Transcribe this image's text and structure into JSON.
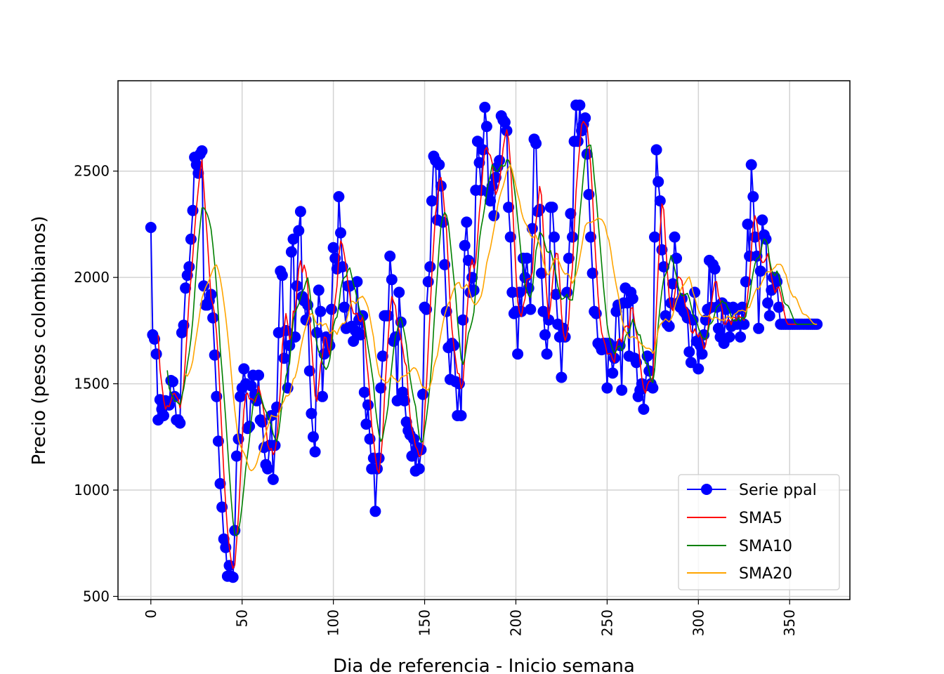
{
  "chart_data": {
    "type": "line",
    "title": "",
    "xlabel": "Dia de referencia - Inicio semana",
    "ylabel": "Precio (pesos colombianos)",
    "xlim": [
      -18,
      383
    ],
    "ylim": [
      485,
      2925
    ],
    "xticks": [
      0,
      50,
      100,
      150,
      200,
      250,
      300,
      350
    ],
    "yticks": [
      500,
      1000,
      1500,
      2000,
      2500
    ],
    "grid": true,
    "legend_position": "lower right",
    "x": [
      0,
      1,
      2,
      3,
      4,
      5,
      6,
      7,
      8,
      9,
      10,
      11,
      12,
      13,
      14,
      15,
      16,
      17,
      18,
      19,
      20,
      21,
      22,
      23,
      24,
      25,
      26,
      27,
      28,
      29,
      30,
      31,
      32,
      33,
      34,
      35,
      36,
      37,
      38,
      39,
      40,
      41,
      42,
      43,
      44,
      45,
      46,
      47,
      48,
      49,
      50,
      51,
      52,
      53,
      54,
      55,
      56,
      57,
      58,
      59,
      60,
      61,
      62,
      63,
      64,
      65,
      66,
      67,
      68,
      69,
      70,
      71,
      72,
      73,
      74,
      75,
      76,
      77,
      78,
      79,
      80,
      81,
      82,
      83,
      84,
      85,
      86,
      87,
      88,
      89,
      90,
      91,
      92,
      93,
      94,
      95,
      96,
      97,
      98,
      99,
      100,
      101,
      102,
      103,
      104,
      105,
      106,
      107,
      108,
      109,
      110,
      111,
      112,
      113,
      114,
      115,
      116,
      117,
      118,
      119,
      120,
      121,
      122,
      123,
      124,
      125,
      126,
      127,
      128,
      129,
      130,
      131,
      132,
      133,
      134,
      135,
      136,
      137,
      138,
      139,
      140,
      141,
      142,
      143,
      144,
      145,
      146,
      147,
      148,
      149,
      150,
      151,
      152,
      153,
      154,
      155,
      156,
      157,
      158,
      159,
      160,
      161,
      162,
      163,
      164,
      165,
      166,
      167,
      168,
      169,
      170,
      171,
      172,
      173,
      174,
      175,
      176,
      177,
      178,
      179,
      180,
      181,
      182,
      183,
      184,
      185,
      186,
      187,
      188,
      189,
      190,
      191,
      192,
      193,
      194,
      195,
      196,
      197,
      198,
      199,
      200,
      201,
      202,
      203,
      204,
      205,
      206,
      207,
      208,
      209,
      210,
      211,
      212,
      213,
      214,
      215,
      216,
      217,
      218,
      219,
      220,
      221,
      222,
      223,
      224,
      225,
      226,
      227,
      228,
      229,
      230,
      231,
      232,
      233,
      234,
      235,
      236,
      237,
      238,
      239,
      240,
      241,
      242,
      243,
      244,
      245,
      246,
      247,
      248,
      249,
      250,
      251,
      252,
      253,
      254,
      255,
      256,
      257,
      258,
      259,
      260,
      261,
      262,
      263,
      264,
      265,
      266,
      267,
      268,
      269,
      270,
      271,
      272,
      273,
      274,
      275,
      276,
      277,
      278,
      279,
      280,
      281,
      282,
      283,
      284,
      285,
      286,
      287,
      288,
      289,
      290,
      291,
      292,
      293,
      294,
      295,
      296,
      297,
      298,
      299,
      300,
      301,
      302,
      303,
      304,
      305,
      306,
      307,
      308,
      309,
      310,
      311,
      312,
      313,
      314,
      315,
      316,
      317,
      318,
      319,
      320,
      321,
      322,
      323,
      324,
      325,
      326,
      327,
      328,
      329,
      330,
      331,
      332,
      333,
      334,
      335,
      336,
      337,
      338,
      339,
      340,
      341,
      342,
      343,
      344,
      345,
      346,
      347,
      348,
      349,
      350,
      351,
      352,
      353,
      354,
      355,
      356,
      357,
      358,
      359,
      360,
      361,
      362,
      363,
      364,
      365
    ],
    "anchors": [
      [
        0,
        2235
      ],
      [
        1,
        1730
      ],
      [
        2,
        1710
      ],
      [
        3,
        1640
      ],
      [
        4,
        1330
      ],
      [
        5,
        1425
      ],
      [
        6,
        1380
      ],
      [
        7,
        1350
      ],
      [
        8,
        1420
      ],
      [
        10,
        1400
      ],
      [
        11,
        1515
      ],
      [
        12,
        1510
      ],
      [
        13,
        1440
      ],
      [
        14,
        1330
      ],
      [
        15,
        1330
      ],
      [
        16,
        1315
      ],
      [
        17,
        1740
      ],
      [
        18,
        1775
      ],
      [
        19,
        1950
      ],
      [
        20,
        2010
      ],
      [
        21,
        2050
      ],
      [
        22,
        2180
      ],
      [
        23,
        2315
      ],
      [
        24,
        2565
      ],
      [
        25,
        2530
      ],
      [
        26,
        2490
      ],
      [
        27,
        2580
      ],
      [
        28,
        2595
      ],
      [
        29,
        1960
      ],
      [
        30,
        1870
      ],
      [
        31,
        1870
      ],
      [
        32,
        1890
      ],
      [
        33,
        1920
      ],
      [
        34,
        1810
      ],
      [
        35,
        1635
      ],
      [
        36,
        1440
      ],
      [
        37,
        1230
      ],
      [
        38,
        1030
      ],
      [
        39,
        920
      ],
      [
        40,
        770
      ],
      [
        41,
        730
      ],
      [
        42,
        595
      ],
      [
        43,
        645
      ],
      [
        44,
        595
      ],
      [
        45,
        590
      ],
      [
        46,
        810
      ],
      [
        47,
        1160
      ],
      [
        48,
        1240
      ],
      [
        49,
        1440
      ],
      [
        50,
        1480
      ],
      [
        51,
        1570
      ],
      [
        52,
        1500
      ],
      [
        53,
        1290
      ],
      [
        54,
        1300
      ],
      [
        55,
        1490
      ],
      [
        56,
        1540
      ],
      [
        57,
        1450
      ],
      [
        58,
        1420
      ],
      [
        59,
        1540
      ],
      [
        60,
        1330
      ],
      [
        61,
        1320
      ],
      [
        62,
        1200
      ],
      [
        63,
        1120
      ],
      [
        64,
        1100
      ],
      [
        65,
        1210
      ],
      [
        66,
        1350
      ],
      [
        67,
        1050
      ],
      [
        68,
        1210
      ],
      [
        69,
        1390
      ],
      [
        70,
        1740
      ],
      [
        71,
        2030
      ],
      [
        72,
        2010
      ],
      [
        73,
        1620
      ],
      [
        74,
        1750
      ],
      [
        75,
        1480
      ],
      [
        76,
        1680
      ],
      [
        77,
        2120
      ],
      [
        78,
        2180
      ],
      [
        79,
        1720
      ],
      [
        80,
        1960
      ],
      [
        81,
        2220
      ],
      [
        82,
        2310
      ],
      [
        83,
        1910
      ],
      [
        84,
        1890
      ],
      [
        85,
        1800
      ],
      [
        86,
        1870
      ],
      [
        87,
        1560
      ],
      [
        88,
        1360
      ],
      [
        89,
        1250
      ],
      [
        90,
        1180
      ],
      [
        91,
        1740
      ],
      [
        92,
        1940
      ],
      [
        93,
        1840
      ],
      [
        94,
        1440
      ],
      [
        95,
        1640
      ],
      [
        96,
        1720
      ],
      [
        97,
        1700
      ],
      [
        98,
        1680
      ],
      [
        99,
        1850
      ],
      [
        100,
        2140
      ],
      [
        101,
        2090
      ],
      [
        102,
        2040
      ],
      [
        103,
        2380
      ],
      [
        104,
        2210
      ],
      [
        105,
        2050
      ],
      [
        106,
        1860
      ],
      [
        107,
        1760
      ],
      [
        108,
        1960
      ],
      [
        109,
        1960
      ],
      [
        110,
        1770
      ],
      [
        111,
        1700
      ],
      [
        112,
        1750
      ],
      [
        113,
        1980
      ],
      [
        114,
        1800
      ],
      [
        115,
        1730
      ],
      [
        116,
        1820
      ],
      [
        117,
        1460
      ],
      [
        118,
        1310
      ],
      [
        119,
        1400
      ],
      [
        120,
        1240
      ],
      [
        121,
        1100
      ],
      [
        122,
        1150
      ],
      [
        123,
        900
      ],
      [
        124,
        1100
      ],
      [
        125,
        1150
      ],
      [
        126,
        1480
      ],
      [
        127,
        1630
      ],
      [
        128,
        1820
      ],
      [
        129,
        1820
      ],
      [
        130,
        1820
      ],
      [
        131,
        2100
      ],
      [
        132,
        1990
      ],
      [
        133,
        1700
      ],
      [
        134,
        1720
      ],
      [
        135,
        1420
      ],
      [
        136,
        1930
      ],
      [
        137,
        1790
      ],
      [
        138,
        1460
      ],
      [
        139,
        1420
      ],
      [
        140,
        1320
      ],
      [
        141,
        1280
      ],
      [
        142,
        1260
      ],
      [
        143,
        1160
      ],
      [
        144,
        1240
      ],
      [
        145,
        1090
      ],
      [
        146,
        1200
      ],
      [
        147,
        1100
      ],
      [
        148,
        1190
      ],
      [
        149,
        1450
      ],
      [
        150,
        1860
      ],
      [
        151,
        1850
      ],
      [
        152,
        1980
      ],
      [
        153,
        2050
      ],
      [
        154,
        2360
      ],
      [
        155,
        2570
      ],
      [
        156,
        2550
      ],
      [
        157,
        2270
      ],
      [
        158,
        2530
      ],
      [
        159,
        2430
      ],
      [
        160,
        2260
      ],
      [
        161,
        2060
      ],
      [
        162,
        1840
      ],
      [
        163,
        1670
      ],
      [
        164,
        1520
      ],
      [
        165,
        1690
      ],
      [
        166,
        1680
      ],
      [
        167,
        1510
      ],
      [
        168,
        1350
      ],
      [
        169,
        1500
      ],
      [
        170,
        1350
      ],
      [
        171,
        1800
      ],
      [
        172,
        2150
      ],
      [
        173,
        2260
      ],
      [
        174,
        2080
      ],
      [
        175,
        1930
      ],
      [
        176,
        2000
      ],
      [
        177,
        1940
      ],
      [
        178,
        2410
      ],
      [
        179,
        2640
      ],
      [
        180,
        2540
      ],
      [
        181,
        2410
      ],
      [
        182,
        2600
      ],
      [
        183,
        2800
      ],
      [
        184,
        2710
      ],
      [
        185,
        2400
      ],
      [
        186,
        2360
      ],
      [
        187,
        2430
      ],
      [
        188,
        2290
      ],
      [
        189,
        2470
      ],
      [
        190,
        2520
      ],
      [
        191,
        2550
      ],
      [
        192,
        2760
      ],
      [
        193,
        2740
      ],
      [
        194,
        2730
      ],
      [
        195,
        2690
      ],
      [
        196,
        2330
      ],
      [
        197,
        2190
      ],
      [
        198,
        1930
      ],
      [
        199,
        1830
      ],
      [
        200,
        1840
      ],
      [
        201,
        1640
      ],
      [
        202,
        1930
      ],
      [
        203,
        1840
      ],
      [
        204,
        2090
      ],
      [
        205,
        2000
      ],
      [
        206,
        2090
      ],
      [
        207,
        1950
      ],
      [
        208,
        1850
      ],
      [
        209,
        2230
      ],
      [
        210,
        2650
      ],
      [
        211,
        2630
      ],
      [
        212,
        2310
      ],
      [
        213,
        2320
      ],
      [
        214,
        2020
      ],
      [
        215,
        1840
      ],
      [
        216,
        1730
      ],
      [
        217,
        1640
      ],
      [
        218,
        1800
      ],
      [
        219,
        2330
      ],
      [
        220,
        2330
      ],
      [
        221,
        2190
      ],
      [
        222,
        1920
      ],
      [
        223,
        1780
      ],
      [
        224,
        1720
      ],
      [
        225,
        1530
      ],
      [
        226,
        1760
      ],
      [
        227,
        1720
      ],
      [
        228,
        1930
      ],
      [
        229,
        2090
      ],
      [
        230,
        2300
      ],
      [
        231,
        2190
      ],
      [
        232,
        2640
      ],
      [
        233,
        2810
      ],
      [
        234,
        2640
      ],
      [
        235,
        2810
      ],
      [
        236,
        2690
      ],
      [
        237,
        2720
      ],
      [
        238,
        2750
      ],
      [
        239,
        2580
      ],
      [
        240,
        2390
      ],
      [
        241,
        2190
      ],
      [
        242,
        2020
      ],
      [
        243,
        1840
      ],
      [
        244,
        1830
      ],
      [
        245,
        1690
      ],
      [
        246,
        1680
      ],
      [
        247,
        1660
      ],
      [
        248,
        1690
      ],
      [
        249,
        1690
      ],
      [
        250,
        1480
      ],
      [
        251,
        1690
      ],
      [
        252,
        1660
      ],
      [
        253,
        1550
      ],
      [
        254,
        1620
      ],
      [
        255,
        1840
      ],
      [
        256,
        1870
      ],
      [
        257,
        1680
      ],
      [
        258,
        1470
      ],
      [
        259,
        1880
      ],
      [
        260,
        1950
      ],
      [
        261,
        1880
      ],
      [
        262,
        1630
      ],
      [
        263,
        1930
      ],
      [
        264,
        1900
      ],
      [
        265,
        1620
      ],
      [
        266,
        1600
      ],
      [
        267,
        1440
      ],
      [
        268,
        1470
      ],
      [
        269,
        1500
      ],
      [
        270,
        1380
      ],
      [
        271,
        1490
      ],
      [
        272,
        1630
      ],
      [
        273,
        1560
      ],
      [
        274,
        1500
      ],
      [
        275,
        1480
      ],
      [
        276,
        2190
      ],
      [
        277,
        2600
      ],
      [
        278,
        2450
      ],
      [
        279,
        2360
      ],
      [
        280,
        2130
      ],
      [
        281,
        2050
      ],
      [
        282,
        1820
      ],
      [
        283,
        1780
      ],
      [
        284,
        1770
      ],
      [
        285,
        1880
      ],
      [
        286,
        1970
      ],
      [
        287,
        2190
      ],
      [
        288,
        2090
      ],
      [
        289,
        1880
      ],
      [
        290,
        1860
      ],
      [
        291,
        1900
      ],
      [
        292,
        1840
      ],
      [
        293,
        1830
      ],
      [
        294,
        1810
      ],
      [
        295,
        1650
      ],
      [
        296,
        1600
      ],
      [
        297,
        1800
      ],
      [
        298,
        1930
      ],
      [
        299,
        1700
      ],
      [
        300,
        1570
      ],
      [
        301,
        1680
      ],
      [
        302,
        1640
      ],
      [
        303,
        1730
      ],
      [
        304,
        1800
      ],
      [
        305,
        1850
      ],
      [
        306,
        2080
      ],
      [
        307,
        1860
      ],
      [
        308,
        2060
      ],
      [
        309,
        2040
      ],
      [
        310,
        1860
      ],
      [
        311,
        1760
      ],
      [
        312,
        1720
      ],
      [
        313,
        1880
      ],
      [
        314,
        1690
      ],
      [
        315,
        1850
      ],
      [
        316,
        1860
      ],
      [
        317,
        1720
      ],
      [
        318,
        1770
      ],
      [
        319,
        1860
      ],
      [
        320,
        1850
      ],
      [
        321,
        1780
      ],
      [
        322,
        1850
      ],
      [
        323,
        1720
      ],
      [
        324,
        1860
      ],
      [
        325,
        1780
      ],
      [
        326,
        1980
      ],
      [
        327,
        2250
      ],
      [
        328,
        2100
      ],
      [
        329,
        2530
      ],
      [
        330,
        2380
      ],
      [
        331,
        2190
      ],
      [
        332,
        2100
      ],
      [
        333,
        1760
      ],
      [
        334,
        2030
      ],
      [
        335,
        2270
      ],
      [
        336,
        2200
      ],
      [
        337,
        2180
      ],
      [
        338,
        1880
      ],
      [
        339,
        1820
      ],
      [
        340,
        1940
      ],
      [
        341,
        2000
      ],
      [
        342,
        2000
      ],
      [
        343,
        1980
      ],
      [
        344,
        1860
      ],
      [
        345,
        1780
      ],
      [
        346,
        1780
      ],
      [
        347,
        1780
      ]
    ],
    "series": [
      {
        "name": "Serie ppal",
        "color": "#0000ff",
        "style": "line-marker"
      },
      {
        "name": "SMA5",
        "color": "#ff0000",
        "style": "line",
        "window": 5
      },
      {
        "name": "SMA10",
        "color": "#008000",
        "style": "line",
        "window": 10
      },
      {
        "name": "SMA20",
        "color": "#ffa500",
        "style": "line",
        "window": 20
      }
    ]
  }
}
